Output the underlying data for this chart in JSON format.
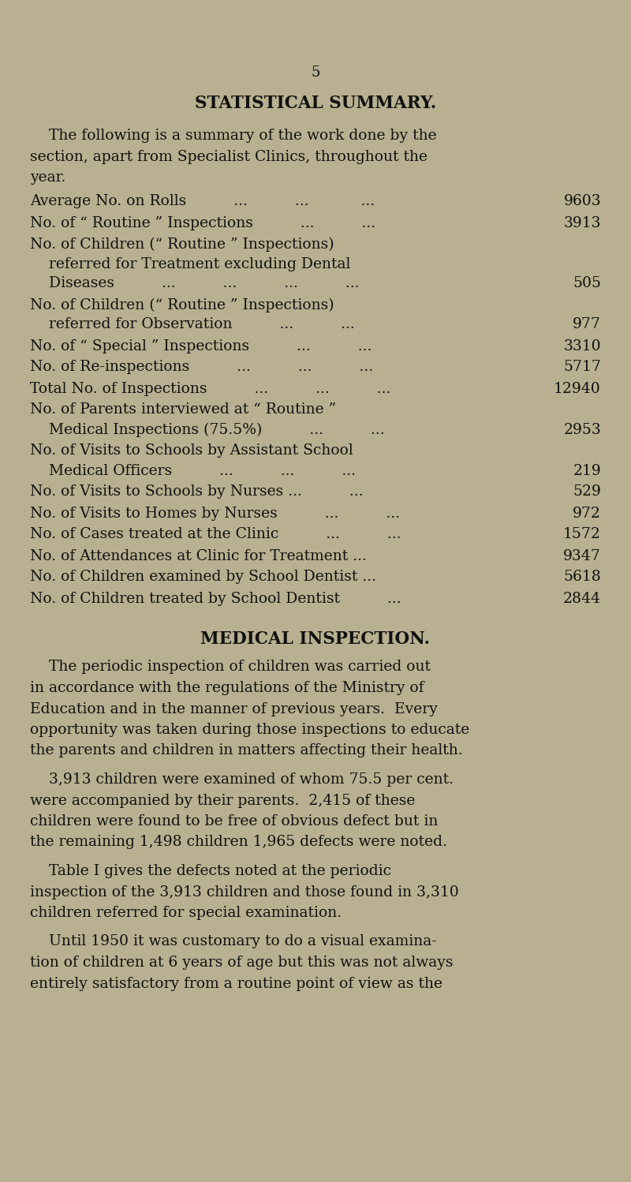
{
  "background_color": "#b8b090",
  "text_color": "#111111",
  "page_number": "5",
  "section_title": "STATISTICAL SUMMARY.",
  "intro_lines": [
    "    The following is a summary of the work done by the",
    "section, apart from Specialist Clinics, throughout the",
    "year."
  ],
  "stat_entries": [
    {
      "lines": [
        "Average No. on Rolls          ...          ...           ..."
      ],
      "value": "9603",
      "nlines": 1
    },
    {
      "lines": [
        "No. of “ Routine ” Inspections          ...          ..."
      ],
      "value": "3913",
      "nlines": 1
    },
    {
      "lines": [
        "No. of Children (“ Routine ” Inspections)",
        "    referred for Treatment excluding Dental",
        "    Diseases          ...          ...          ...          ..."
      ],
      "value": "505",
      "nlines": 3
    },
    {
      "lines": [
        "No. of Children (“ Routine ” Inspections)",
        "    referred for Observation          ...          ..."
      ],
      "value": "977",
      "nlines": 2
    },
    {
      "lines": [
        "No. of “ Special ” Inspections          ...          ..."
      ],
      "value": "3310",
      "nlines": 1
    },
    {
      "lines": [
        "No. of Re-inspections          ...          ...          ..."
      ],
      "value": "5717",
      "nlines": 1
    },
    {
      "lines": [
        "Total No. of Inspections          ...          ...          ..."
      ],
      "value": "12940",
      "nlines": 1
    },
    {
      "lines": [
        "No. of Parents interviewed at “ Routine ”",
        "    Medical Inspections (75.5%)          ...          ..."
      ],
      "value": "2953",
      "nlines": 2
    },
    {
      "lines": [
        "No. of Visits to Schools by Assistant School",
        "    Medical Officers          ...          ...          ..."
      ],
      "value": "219",
      "nlines": 2
    },
    {
      "lines": [
        "No. of Visits to Schools by Nurses ...          ..."
      ],
      "value": "529",
      "nlines": 1
    },
    {
      "lines": [
        "No. of Visits to Homes by Nurses          ...          ..."
      ],
      "value": "972",
      "nlines": 1
    },
    {
      "lines": [
        "No. of Cases treated at the Clinic          ...          ..."
      ],
      "value": "1572",
      "nlines": 1
    },
    {
      "lines": [
        "No. of Attendances at Clinic for Treatment ..."
      ],
      "value": "9347",
      "nlines": 1
    },
    {
      "lines": [
        "No. of Children examined by School Dentist ..."
      ],
      "value": "5618",
      "nlines": 1
    },
    {
      "lines": [
        "No. of Children treated by School Dentist          ..."
      ],
      "value": "2844",
      "nlines": 1
    }
  ],
  "section2_title": "MEDICAL INSPECTION.",
  "para_lines": [
    [
      "    The periodic inspection of children was carried out",
      "in accordance with the regulations of the Ministry of",
      "Education and in the manner of previous years.  Every",
      "opportunity was taken during those inspections to educate",
      "the parents and children in matters affecting their health."
    ],
    [
      "    3,913 children were examined of whom 75.5 per cent.",
      "were accompanied by their parents.  2,415 of these",
      "children were found to be free of obvious defect but in",
      "the remaining 1,498 children 1,965 defects were noted."
    ],
    [
      "    Table I gives the defects noted at the periodic",
      "inspection of the 3,913 children and those found in 3,310",
      "children referred for special examination."
    ],
    [
      "    Until 1950 it was customary to do a visual examina-",
      "tion of children at 6 years of age but this was not always",
      "entirely satisfactory from a routine point of view as the"
    ]
  ]
}
